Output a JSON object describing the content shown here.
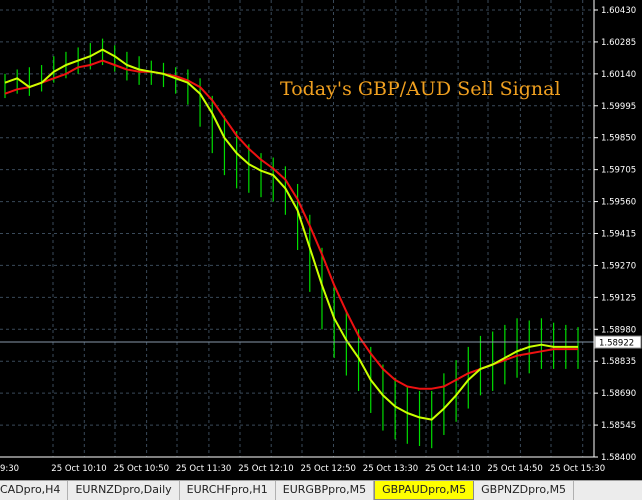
{
  "overlay_title": "Today's GBP/AUD Sell Signal",
  "tabs": [
    {
      "label": "CADpro,H4",
      "active": false
    },
    {
      "label": "EURNZDpro,Daily",
      "active": false
    },
    {
      "label": "EURCHFpro,H1",
      "active": false
    },
    {
      "label": "EURGBPpro,M5",
      "active": false
    },
    {
      "label": "GBPAUDpro,M5",
      "active": true
    },
    {
      "label": "GBPNZDpro,M5",
      "active": false
    }
  ],
  "colors": {
    "background": "#000000",
    "grid": "#3a4a5a",
    "price_bars": "#00dd00",
    "fast_ma": "#ccff00",
    "slow_ma": "#ee1111",
    "price_line": "#8899aa",
    "title": "#f0a020",
    "active_tab": "#ffff00"
  },
  "chart_data": {
    "type": "line",
    "title": "Today's GBP/AUD Sell Signal",
    "symbol": "GBPAUDpro,M5",
    "y_ticks": [
      "1.60430",
      "1.60285",
      "1.60140",
      "1.59995",
      "1.59850",
      "1.59705",
      "1.59560",
      "1.59415",
      "1.59270",
      "1.59125",
      "1.58980",
      "1.58835",
      "1.58690",
      "1.58545",
      "1.58400"
    ],
    "x_ticks": [
      "9:30",
      "25 Oct 10:10",
      "25 Oct 10:50",
      "25 Oct 11:30",
      "25 Oct 12:10",
      "25 Oct 12:50",
      "25 Oct 13:30",
      "25 Oct 14:10",
      "25 Oct 14:50",
      "25 Oct 15:30"
    ],
    "current_price": "1.58922",
    "ylim": [
      1.584,
      1.6043
    ],
    "series": [
      {
        "values": [
          1.601,
          1.6012,
          1.6008,
          1.601,
          1.6015,
          1.6018,
          1.602,
          1.6022,
          1.6025,
          1.6022,
          1.6018,
          1.6016,
          1.6015,
          1.6014,
          1.6012,
          1.601,
          1.6005,
          1.5996,
          1.5985,
          1.5978,
          1.5973,
          1.597,
          1.5968,
          1.5962,
          1.5952,
          1.5935,
          1.5918,
          1.5903,
          1.5893,
          1.5885,
          1.5875,
          1.5868,
          1.5863,
          1.586,
          1.5858,
          1.5857,
          1.5862,
          1.5868,
          1.5875,
          1.588,
          1.5882,
          1.5885,
          1.5888,
          1.589,
          1.5891,
          1.589,
          1.589,
          1.589
        ]
      },
      {
        "values": [
          1.6005,
          1.6007,
          1.6008,
          1.601,
          1.6012,
          1.6014,
          1.6017,
          1.6018,
          1.602,
          1.6018,
          1.6016,
          1.6015,
          1.6015,
          1.6014,
          1.6013,
          1.6011,
          1.6008,
          1.6002,
          1.5994,
          1.5986,
          1.598,
          1.5975,
          1.5971,
          1.5966,
          1.5957,
          1.5945,
          1.5932,
          1.5918,
          1.5906,
          1.5895,
          1.5887,
          1.588,
          1.5875,
          1.5872,
          1.5871,
          1.5871,
          1.5872,
          1.5875,
          1.5878,
          1.588,
          1.5882,
          1.5884,
          1.5886,
          1.5887,
          1.5888,
          1.5889,
          1.5889,
          1.5889
        ]
      }
    ],
    "bars": [
      [
        1.6014,
        1.6003
      ],
      [
        1.6016,
        1.6005
      ],
      [
        1.6017,
        1.6004
      ],
      [
        1.6018,
        1.6006
      ],
      [
        1.6022,
        1.601
      ],
      [
        1.6024,
        1.6012
      ],
      [
        1.6026,
        1.6014
      ],
      [
        1.6028,
        1.6016
      ],
      [
        1.603,
        1.6018
      ],
      [
        1.6027,
        1.6015
      ],
      [
        1.6024,
        1.6011
      ],
      [
        1.6022,
        1.6009
      ],
      [
        1.602,
        1.6009
      ],
      [
        1.6019,
        1.6008
      ],
      [
        1.6017,
        1.6005
      ],
      [
        1.6016,
        1.6
      ],
      [
        1.6012,
        1.599
      ],
      [
        1.6004,
        1.5978
      ],
      [
        1.5995,
        1.5968
      ],
      [
        1.5988,
        1.5962
      ],
      [
        1.5982,
        1.596
      ],
      [
        1.5978,
        1.5958
      ],
      [
        1.5976,
        1.5956
      ],
      [
        1.5972,
        1.595
      ],
      [
        1.5964,
        1.5934
      ],
      [
        1.595,
        1.5915
      ],
      [
        1.5935,
        1.5898
      ],
      [
        1.5918,
        1.5885
      ],
      [
        1.5906,
        1.5877
      ],
      [
        1.5898,
        1.587
      ],
      [
        1.589,
        1.586
      ],
      [
        1.5882,
        1.5852
      ],
      [
        1.5876,
        1.5848
      ],
      [
        1.5872,
        1.5846
      ],
      [
        1.587,
        1.5845
      ],
      [
        1.587,
        1.5844
      ],
      [
        1.5878,
        1.585
      ],
      [
        1.5884,
        1.5856
      ],
      [
        1.589,
        1.5862
      ],
      [
        1.5895,
        1.5868
      ],
      [
        1.5897,
        1.587
      ],
      [
        1.59,
        1.5873
      ],
      [
        1.5903,
        1.5876
      ],
      [
        1.5902,
        1.5878
      ],
      [
        1.5903,
        1.588
      ],
      [
        1.5901,
        1.588
      ],
      [
        1.59,
        1.588
      ],
      [
        1.5899,
        1.588
      ]
    ]
  }
}
